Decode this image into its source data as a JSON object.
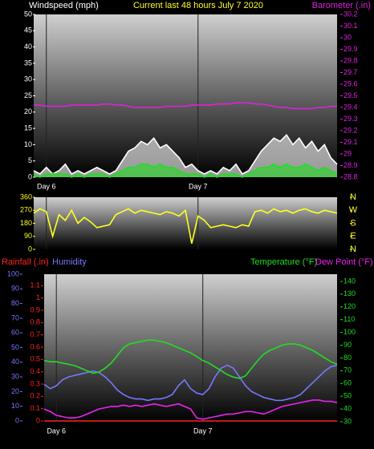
{
  "chart_data": [
    {
      "type": "line",
      "title": "Current last 48 hours July 7 2020",
      "ylabel": "Windspeed (mph)",
      "y2label": "Barometer (.in)",
      "x": [
        0,
        1,
        2,
        3,
        4,
        5,
        6,
        7,
        8,
        9,
        10,
        11,
        12,
        13,
        14,
        15,
        16,
        17,
        18,
        19,
        20,
        21,
        22,
        23,
        24,
        25,
        26,
        27,
        28,
        29,
        30,
        31,
        32,
        33,
        34,
        35,
        36,
        37,
        38,
        39,
        40,
        41,
        42,
        43,
        44,
        45,
        46,
        47,
        48
      ],
      "xlim": [
        0,
        48
      ],
      "xticks": [
        {
          "value": 2,
          "label": "Day 6"
        },
        {
          "value": 26,
          "label": "Day 7"
        }
      ],
      "ylim": [
        0,
        50
      ],
      "yticks": [
        0,
        5,
        10,
        15,
        20,
        25,
        30,
        35,
        40,
        45,
        50
      ],
      "y2lim": [
        28.8,
        30.2
      ],
      "y2ticks": [
        28.8,
        28.9,
        29,
        29.1,
        29.2,
        29.3,
        29.4,
        29.5,
        29.6,
        29.7,
        29.8,
        29.9,
        30,
        30.1,
        30.2
      ],
      "series": [
        {
          "color": "#ffffff",
          "style": "area",
          "values": [
            2,
            1,
            3,
            1,
            2,
            4,
            1,
            2,
            1,
            2,
            3,
            2,
            1,
            2,
            5,
            8,
            9,
            11,
            10,
            12,
            9,
            10,
            8,
            6,
            3,
            4,
            2,
            1,
            2,
            1,
            3,
            2,
            4,
            1,
            2,
            5,
            8,
            10,
            12,
            11,
            13,
            10,
            12,
            9,
            11,
            8,
            10,
            6,
            4
          ]
        },
        {
          "color": "#22dd22",
          "style": "area",
          "values": [
            1,
            0,
            1,
            1,
            1,
            1,
            0,
            1,
            0,
            1,
            1,
            1,
            0,
            1,
            2,
            3,
            3,
            4,
            4,
            3,
            4,
            3,
            3,
            2,
            1,
            1,
            1,
            0,
            1,
            0,
            1,
            1,
            1,
            0,
            1,
            2,
            3,
            3,
            4,
            3,
            4,
            3,
            3,
            4,
            3,
            2,
            3,
            2,
            1
          ]
        },
        {
          "color": "#dd22dd",
          "style": "line",
          "axis": "y2",
          "values": [
            29.42,
            29.42,
            29.41,
            29.41,
            29.41,
            29.41,
            29.42,
            29.42,
            29.42,
            29.42,
            29.42,
            29.43,
            29.43,
            29.42,
            29.42,
            29.41,
            29.4,
            29.4,
            29.4,
            29.4,
            29.4,
            29.41,
            29.41,
            29.41,
            29.41,
            29.42,
            29.42,
            29.42,
            29.42,
            29.43,
            29.43,
            29.43,
            29.44,
            29.44,
            29.44,
            29.43,
            29.43,
            29.42,
            29.41,
            29.4,
            29.4,
            29.39,
            29.39,
            29.39,
            29.39,
            29.4,
            29.4,
            29.41,
            29.41
          ]
        }
      ]
    },
    {
      "type": "line",
      "x": [
        0,
        1,
        2,
        3,
        4,
        5,
        6,
        7,
        8,
        9,
        10,
        11,
        12,
        13,
        14,
        15,
        16,
        17,
        18,
        19,
        20,
        21,
        22,
        23,
        24,
        25,
        26,
        27,
        28,
        29,
        30,
        31,
        32,
        33,
        34,
        35,
        36,
        37,
        38,
        39,
        40,
        41,
        42,
        43,
        44,
        45,
        46,
        47,
        48
      ],
      "xlim": [
        0,
        48
      ],
      "xticks": [
        {
          "value": 2,
          "label": ""
        },
        {
          "value": 26,
          "label": ""
        }
      ],
      "ylim": [
        0,
        360
      ],
      "yticks": [
        0,
        90,
        180,
        270,
        360
      ],
      "y2lim": [
        0,
        360
      ],
      "y2ticks": [
        {
          "value": 0,
          "label": "N"
        },
        {
          "value": 90,
          "label": "E"
        },
        {
          "value": 180,
          "label": "S"
        },
        {
          "value": 270,
          "label": "W"
        },
        {
          "value": 360,
          "label": "N"
        }
      ],
      "series": [
        {
          "color": "#ffff22",
          "style": "line",
          "values": [
            250,
            280,
            260,
            90,
            240,
            200,
            270,
            180,
            220,
            190,
            150,
            160,
            170,
            240,
            260,
            280,
            250,
            270,
            260,
            250,
            240,
            260,
            250,
            230,
            270,
            40,
            230,
            200,
            150,
            160,
            170,
            160,
            150,
            170,
            160,
            260,
            270,
            250,
            280,
            260,
            270,
            250,
            270,
            280,
            260,
            250,
            270,
            260,
            250
          ]
        }
      ]
    },
    {
      "type": "line",
      "x": [
        0,
        1,
        2,
        3,
        4,
        5,
        6,
        7,
        8,
        9,
        10,
        11,
        12,
        13,
        14,
        15,
        16,
        17,
        18,
        19,
        20,
        21,
        22,
        23,
        24,
        25,
        26,
        27,
        28,
        29,
        30,
        31,
        32,
        33,
        34,
        35,
        36,
        37,
        38,
        39,
        40,
        41,
        42,
        43,
        44,
        45,
        46,
        47,
        48
      ],
      "xlim": [
        0,
        48
      ],
      "xticks": [
        {
          "value": 2,
          "label": "Day 6"
        },
        {
          "value": 26,
          "label": "Day 7"
        }
      ],
      "ylim": [
        0,
        100
      ],
      "yticks": [
        0,
        10,
        20,
        30,
        40,
        50,
        60,
        70,
        80,
        90,
        100
      ],
      "y2lim": [
        30,
        145
      ],
      "y2ticks": [
        30,
        40,
        50,
        60,
        70,
        80,
        90,
        100,
        110,
        120,
        130,
        140
      ],
      "y3lim": [
        0,
        1.2
      ],
      "y3ticks": [
        0,
        0.1,
        0.2,
        0.3,
        0.4,
        0.5,
        0.6,
        0.7,
        0.8,
        0.9,
        1,
        1.1
      ],
      "series": [
        {
          "name": "Rainfall (.in)",
          "color": "#ff2222",
          "style": "line",
          "axis": "y3",
          "values": [
            0,
            0,
            0,
            0,
            0,
            0,
            0,
            0,
            0,
            0,
            0,
            0,
            0,
            0,
            0,
            0,
            0,
            0,
            0,
            0,
            0,
            0,
            0,
            0,
            0,
            0,
            0,
            0,
            0,
            0,
            0,
            0,
            0,
            0,
            0,
            0,
            0,
            0,
            0,
            0,
            0,
            0,
            0,
            0,
            0,
            0,
            0,
            0,
            0
          ]
        },
        {
          "name": "Humidity",
          "color": "#7777ff",
          "style": "line",
          "values": [
            25,
            22,
            24,
            28,
            30,
            31,
            32,
            33,
            34,
            33,
            30,
            26,
            21,
            18,
            16,
            15,
            15,
            14,
            15,
            15,
            16,
            18,
            24,
            28,
            22,
            19,
            18,
            22,
            30,
            36,
            38,
            36,
            30,
            24,
            20,
            18,
            16,
            15,
            14,
            14,
            15,
            16,
            18,
            22,
            26,
            30,
            34,
            37,
            38
          ]
        },
        {
          "name": "Temperature (°F)",
          "color": "#22dd22",
          "style": "line",
          "axis": "y2",
          "values": [
            78,
            77,
            77,
            76,
            75,
            74,
            72,
            70,
            68,
            69,
            72,
            76,
            82,
            88,
            91,
            92,
            93,
            94,
            94,
            93,
            92,
            90,
            88,
            86,
            84,
            81,
            78,
            76,
            73,
            70,
            67,
            65,
            64,
            66,
            72,
            78,
            83,
            86,
            88,
            90,
            91,
            91,
            90,
            88,
            86,
            83,
            80,
            77,
            75
          ]
        },
        {
          "name": "Dew Point (°F)",
          "color": "#ee22ee",
          "style": "line",
          "axis": "y2",
          "values": [
            40,
            38,
            35,
            34,
            33,
            33,
            34,
            36,
            38,
            40,
            41,
            42,
            42,
            43,
            42,
            43,
            42,
            43,
            44,
            43,
            42,
            43,
            44,
            42,
            40,
            33,
            32,
            33,
            34,
            35,
            36,
            36,
            37,
            38,
            38,
            37,
            36,
            38,
            40,
            42,
            43,
            44,
            45,
            46,
            47,
            47,
            46,
            46,
            45
          ]
        }
      ]
    }
  ]
}
